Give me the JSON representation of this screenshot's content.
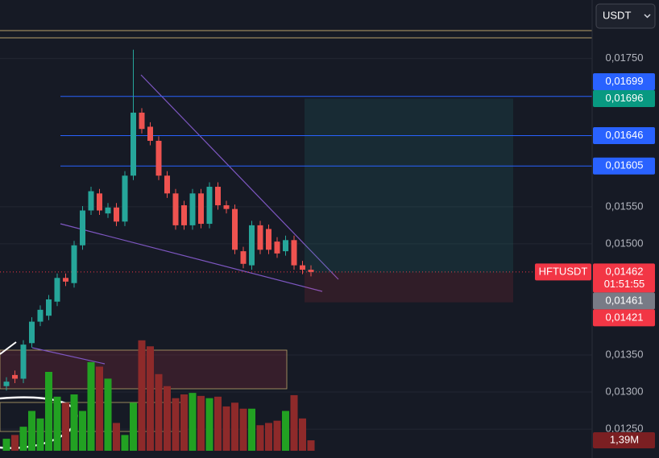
{
  "header": {
    "currency": "USDT"
  },
  "chart_data": {
    "type": "candlestick",
    "symbol": "HFTUSDT",
    "colors": {
      "up": "#26a69a",
      "down": "#ef5350",
      "volume_up": "#22a122",
      "volume_down": "#8e2a2a"
    },
    "open": [
      0.01308,
      0.01323,
      0.01318,
      0.01366,
      0.01395,
      0.01403,
      0.01422,
      0.01454,
      0.01447,
      0.01498,
      0.01545,
      0.01568,
      0.01541,
      0.01549,
      0.0153,
      0.01592,
      0.01677,
      0.01658,
      0.01639,
      0.01592,
      0.01568,
      0.01552,
      0.01525,
      0.01568,
      0.01527,
      0.01577,
      0.01552,
      0.01547,
      0.0149,
      0.01471,
      0.01525,
      0.0152,
      0.01503,
      0.0149,
      0.01505,
      0.01471,
      0.01465
    ],
    "high": [
      0.0132,
      0.01329,
      0.0137,
      0.01401,
      0.01417,
      0.01431,
      0.0146,
      0.0146,
      0.01504,
      0.01551,
      0.01577,
      0.01574,
      0.01555,
      0.01555,
      0.01598,
      0.01762,
      0.01683,
      0.01664,
      0.01645,
      0.01598,
      0.01574,
      0.01558,
      0.01574,
      0.01574,
      0.01583,
      0.01583,
      0.01558,
      0.01553,
      0.01496,
      0.01531,
      0.01531,
      0.01526,
      0.01509,
      0.01511,
      0.01511,
      0.01477,
      0.01471
    ],
    "low": [
      0.01302,
      0.01312,
      0.01312,
      0.0136,
      0.01389,
      0.01397,
      0.01416,
      0.01443,
      0.01441,
      0.01492,
      0.01539,
      0.01539,
      0.01535,
      0.01524,
      0.01524,
      0.01586,
      0.01649,
      0.01633,
      0.01586,
      0.01562,
      0.01519,
      0.01519,
      0.01519,
      0.01521,
      0.01521,
      0.01546,
      0.01541,
      0.01486,
      0.01467,
      0.01465,
      0.01486,
      0.01486,
      0.01481,
      0.01484,
      0.01465,
      0.01459,
      0.01456
    ],
    "close": [
      0.01314,
      0.01318,
      0.01364,
      0.01395,
      0.01411,
      0.01425,
      0.01454,
      0.01449,
      0.01498,
      0.01545,
      0.01571,
      0.01545,
      0.01549,
      0.0153,
      0.01592,
      0.01677,
      0.01655,
      0.01639,
      0.01592,
      0.01568,
      0.01525,
      0.01525,
      0.01568,
      0.01527,
      0.01577,
      0.01552,
      0.01547,
      0.01492,
      0.01473,
      0.01525,
      0.01492,
      0.01492,
      0.01487,
      0.01505,
      0.01471,
      0.01465,
      0.01462
    ],
    "ylim": [
      0.01211,
      0.01829
    ],
    "yticks": [
      {
        "value": 0.0175,
        "label": "0,01750"
      },
      {
        "value": 0.0155,
        "label": "0,01550"
      },
      {
        "value": 0.015,
        "label": "0,01500"
      },
      {
        "value": 0.0135,
        "label": "0,01350"
      },
      {
        "value": 0.013,
        "label": "0,01300"
      },
      {
        "value": 0.0125,
        "label": "0,01250"
      }
    ],
    "grid": true,
    "price_lines": [
      {
        "value": 0.01699,
        "label": "0,01699",
        "color": "#2962ff"
      },
      {
        "value": 0.01646,
        "label": "0,01646",
        "color": "#2962ff"
      },
      {
        "value": 0.01605,
        "label": "0,01605",
        "color": "#2962ff"
      }
    ],
    "position": {
      "target": {
        "value": 0.01696,
        "label": "0,01696",
        "color": "#089981"
      },
      "entry": {
        "value": 0.01461,
        "label": "0,01461",
        "color": "#787b86"
      },
      "stop": {
        "value": 0.01421,
        "label": "0,01421",
        "color": "#f23645"
      }
    },
    "last_price": {
      "value": 0.01462,
      "label": "0,01462",
      "countdown": "01:51:55",
      "color": "#f23645"
    },
    "volume": {
      "values": [
        1.6,
        2.1,
        3.2,
        5.3,
        4.3,
        10.5,
        7.2,
        6.4,
        7.5,
        5.3,
        11.8,
        11.2,
        9.6,
        3.7,
        2.1,
        6.4,
        14.7,
        13.9,
        10.2,
        8.6,
        7.0,
        7.5,
        7.7,
        7.3,
        7.0,
        7.2,
        5.9,
        6.4,
        5.6,
        5.6,
        3.4,
        3.7,
        4.0,
        5.3,
        7.4,
        4.3,
        1.39
      ],
      "last_label": "1,39M",
      "ylim": [
        0,
        15
      ]
    }
  }
}
